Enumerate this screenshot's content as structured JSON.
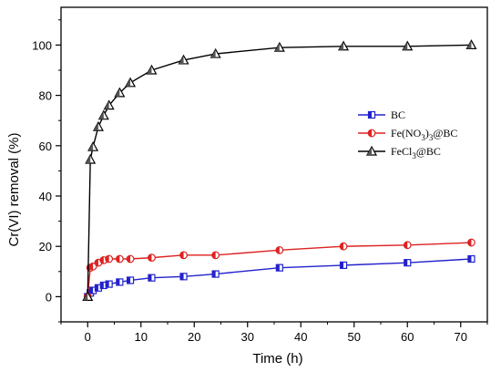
{
  "chart_data": {
    "type": "line",
    "title": "",
    "xlabel": "Time (h)",
    "ylabel": "Cr(VI) removal (%)",
    "xlim": [
      -5,
      75
    ],
    "ylim": [
      -10,
      115
    ],
    "xticks": [
      0,
      10,
      20,
      30,
      40,
      50,
      60,
      70
    ],
    "yticks": [
      0,
      20,
      40,
      60,
      80,
      100
    ],
    "grid": false,
    "legend_position": "middle-right",
    "series": [
      {
        "name": "BC",
        "name_main": "BC",
        "name_sub": "",
        "name_suffix": "",
        "color": "#2222cc",
        "marker": "square",
        "x": [
          0,
          0.5,
          1,
          2,
          3,
          4,
          6,
          8,
          12,
          18,
          24,
          36,
          48,
          60,
          72
        ],
        "y": [
          0,
          1.5,
          2.5,
          3.5,
          4.5,
          5,
          5.8,
          6.5,
          7.5,
          8,
          9,
          11.5,
          12.5,
          13.5,
          15
        ]
      },
      {
        "name": "Fe(NO3)3@BC",
        "name_main": "Fe(NO",
        "name_sub": "3",
        "name_mid": ")",
        "name_sub2": "3",
        "name_suffix": "@BC",
        "color": "#dd2222",
        "marker": "circle",
        "x": [
          0,
          0.5,
          1,
          2,
          3,
          4,
          6,
          8,
          12,
          18,
          24,
          36,
          48,
          60,
          72
        ],
        "y": [
          0,
          11.5,
          12,
          13.5,
          14.5,
          15,
          15,
          15,
          15.5,
          16.5,
          16.5,
          18.5,
          20,
          20.5,
          21.5
        ]
      },
      {
        "name": "FeCl3@BC",
        "name_main": "FeCl",
        "name_sub": "3",
        "name_suffix": "@BC",
        "color": "#000000",
        "marker": "triangle",
        "x": [
          0,
          0.5,
          1,
          2,
          3,
          4,
          6,
          8,
          12,
          18,
          24,
          36,
          48,
          60,
          72
        ],
        "y": [
          0,
          54.5,
          59.5,
          67.5,
          72,
          76,
          81,
          85,
          90,
          94,
          96.5,
          99,
          99.5,
          99.5,
          100
        ]
      }
    ]
  }
}
